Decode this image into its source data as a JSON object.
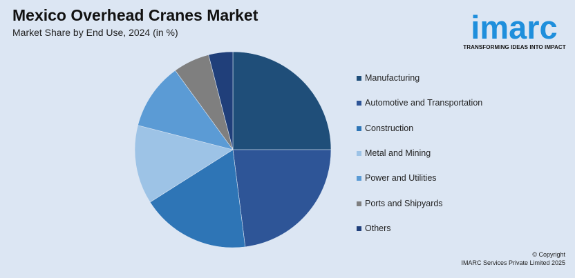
{
  "header": {
    "title": "Mexico Overhead Cranes Market",
    "subtitle": "Market Share by End Use, 2024 (in %)"
  },
  "logo": {
    "name": "imarc",
    "tagline": "TRANSFORMING IDEAS INTO IMPACT",
    "color": "#1f8fdc"
  },
  "footer": {
    "copyright": "© Copyright",
    "owner": "IMARC Services Private Limited 2025"
  },
  "chart_data": {
    "type": "pie",
    "categories": [
      "Manufacturing",
      "Automotive and Transportation",
      "Construction",
      "Metal and Mining",
      "Power and Utilities",
      "Ports and Shipyards",
      "Others"
    ],
    "values": [
      25,
      23,
      18,
      13,
      11,
      6,
      4
    ],
    "colors": [
      "#1f4e79",
      "#2e5597",
      "#2e75b6",
      "#9dc3e6",
      "#5b9bd5",
      "#7f7f7f",
      "#203f7a"
    ],
    "legend_position": "right",
    "start_angle": "top",
    "direction": "clockwise"
  }
}
